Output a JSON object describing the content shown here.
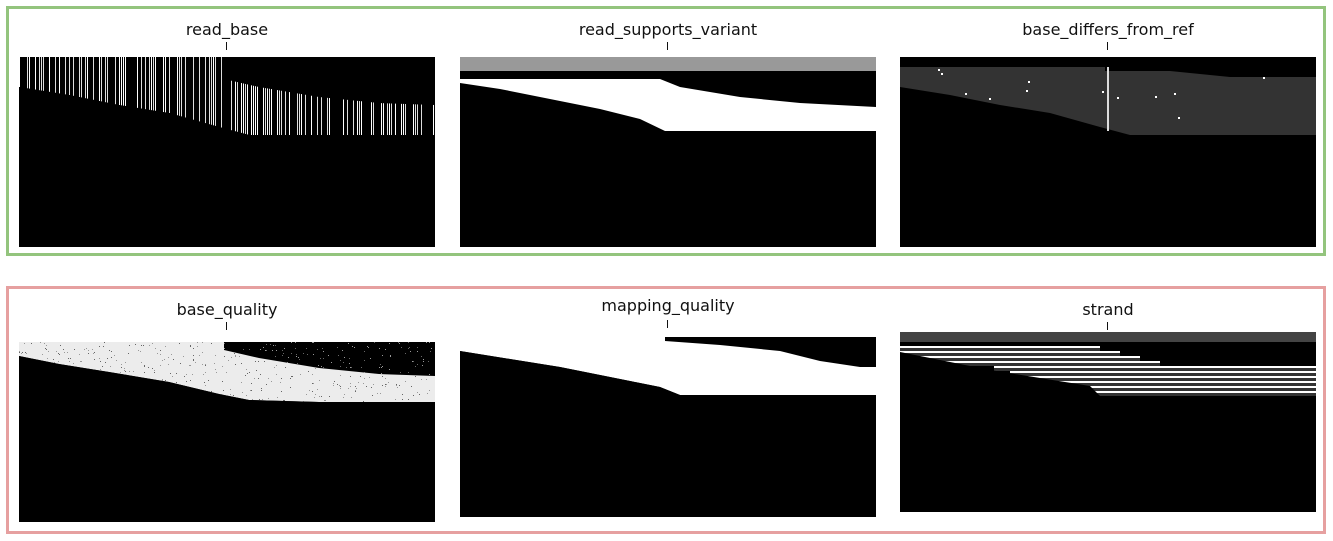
{
  "colors": {
    "top_group_border": "#93c47d",
    "bottom_group_border": "#e6a0a0"
  },
  "groups": [
    {
      "id": "top",
      "panels": [
        {
          "title": "read_base",
          "style": "read_base"
        },
        {
          "title": "read_supports_variant",
          "style": "read_supports_variant"
        },
        {
          "title": "base_differs_from_ref",
          "style": "base_differs_from_ref"
        }
      ]
    },
    {
      "id": "bottom",
      "panels": [
        {
          "title": "base_quality",
          "style": "base_quality"
        },
        {
          "title": "mapping_quality",
          "style": "mapping_quality"
        },
        {
          "title": "strand",
          "style": "strand"
        }
      ]
    }
  ]
}
